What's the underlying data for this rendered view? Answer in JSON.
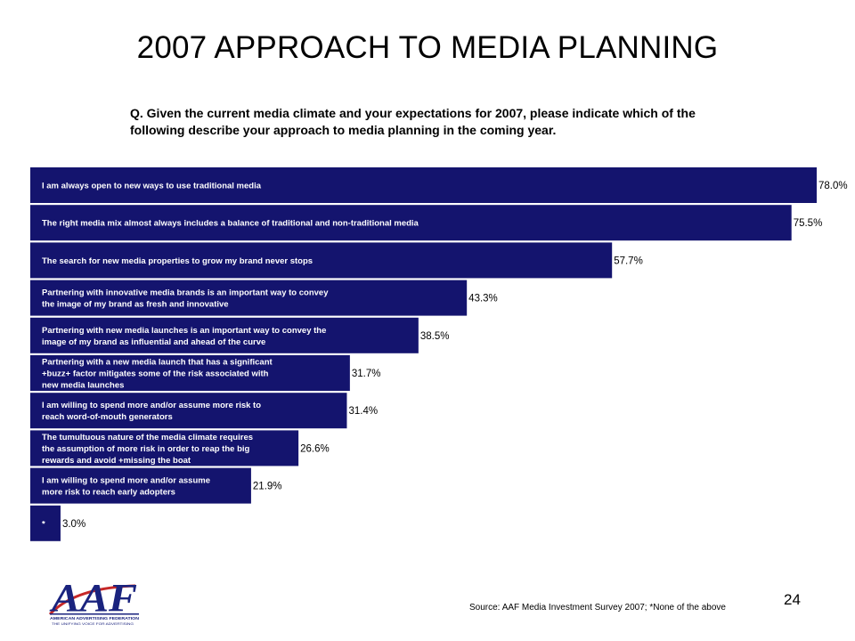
{
  "slide": {
    "title": "2007 APPROACH TO MEDIA PLANNING",
    "question": "Q.  Given the current media climate and your expectations for 2007, please indicate which of the following describe your approach to media planning in the coming year.",
    "source": "Source: AAF Media Investment Survey 2007; *None of the above",
    "page_number": "24",
    "logo": {
      "letters": "AAF",
      "name": "AMERICAN ADVERTISING FEDERATION",
      "tagline": "THE UNIFYING VOICE FOR ADVERTISING"
    }
  },
  "colors": {
    "bar": "#14146e",
    "bar_text": "#ffffff",
    "value_text": "#000000",
    "logo_blue": "#1a237e",
    "logo_red": "#c62828"
  },
  "chart_data": {
    "type": "bar",
    "orientation": "horizontal",
    "categories": [
      "I am always open to new ways to use traditional media",
      "The right media mix almost always includes a balance of traditional and non-traditional media",
      "The search for new media properties to grow my brand never stops",
      "Partnering with innovative media brands is an important way to convey the image of my brand as fresh and innovative",
      "Partnering with new media launches is an important way to convey the image of my brand as influential and ahead of the curve",
      "Partnering with a new media launch that has a significant +buzz+ factor mitigates some of the risk associated with new media launches",
      "I am willing to spend more and/or assume more risk to reach word-of-mouth generators",
      "The tumultuous nature of the media climate requires the assumption of more risk in order to reap the big rewards and avoid +missing the boat",
      "I am willing to spend more and/or assume more risk to reach early adopters",
      "*"
    ],
    "label_lines": [
      [
        "I am always open to new ways to use traditional media"
      ],
      [
        "The right media mix almost always includes a balance of traditional and non-traditional media"
      ],
      [
        "The search for new media properties to grow my brand never stops"
      ],
      [
        "Partnering with innovative media brands is an important way to convey",
        "the image of my brand as fresh and innovative"
      ],
      [
        "Partnering with new media launches is an important way to convey the",
        "image of my brand as influential and ahead of the curve"
      ],
      [
        "Partnering with a new media launch that has a significant",
        "+buzz+ factor mitigates some of the risk associated with",
        "new media launches"
      ],
      [
        "I am willing to spend more and/or assume more risk to",
        "reach word-of-mouth generators"
      ],
      [
        "The tumultuous nature of the media climate requires",
        "the assumption of more risk in order to reap the big",
        "rewards and avoid +missing the boat"
      ],
      [
        "I am willing to spend more and/or assume",
        "more risk to reach early adopters"
      ],
      [
        "*"
      ]
    ],
    "values": [
      78.0,
      75.5,
      57.7,
      43.3,
      38.5,
      31.7,
      31.4,
      26.6,
      21.9,
      3.0
    ],
    "value_labels": [
      "78.0%",
      "75.5%",
      "57.7%",
      "43.3%",
      "38.5%",
      "31.7%",
      "31.4%",
      "26.6%",
      "21.9%",
      "3.0%"
    ],
    "xlim": [
      0,
      78
    ],
    "grid": false,
    "legend": "none"
  }
}
